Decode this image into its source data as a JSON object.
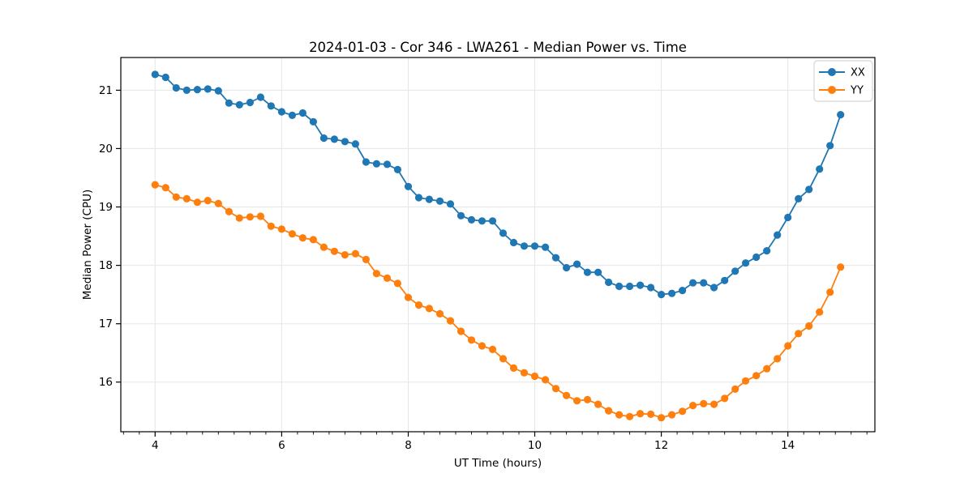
{
  "chart_data": {
    "type": "line",
    "title": "2024-01-03 - Cor 346 - LWA261 - Median Power vs. Time",
    "xlabel": "UT Time (hours)",
    "ylabel": "Median Power (CPU)",
    "xlim": [
      3.458,
      15.375
    ],
    "ylim": [
      15.15,
      21.56
    ],
    "x_major_ticks": [
      4,
      6,
      8,
      10,
      12,
      14
    ],
    "x_minor_tick_step": 0.25,
    "y_major_ticks": [
      16,
      17,
      18,
      19,
      20,
      21
    ],
    "grid": true,
    "grid_color": "#e6e6e6",
    "legend_position": "upper right",
    "marker": "circle",
    "marker_size": 9.2,
    "line_width": 1.8,
    "x": [
      4,
      4.167,
      4.333,
      4.5,
      4.667,
      4.833,
      5,
      5.167,
      5.333,
      5.5,
      5.667,
      5.833,
      6,
      6.167,
      6.333,
      6.5,
      6.667,
      6.833,
      7,
      7.167,
      7.333,
      7.5,
      7.667,
      7.833,
      8,
      8.167,
      8.333,
      8.5,
      8.667,
      8.833,
      9,
      9.167,
      9.333,
      9.5,
      9.667,
      9.833,
      10,
      10.167,
      10.333,
      10.5,
      10.667,
      10.833,
      11,
      11.167,
      11.333,
      11.5,
      11.667,
      11.833,
      12,
      12.167,
      12.333,
      12.5,
      12.667,
      12.833,
      13,
      13.167,
      13.333,
      13.5,
      13.667,
      13.833,
      14,
      14.167,
      14.333,
      14.5,
      14.667,
      14.833
    ],
    "series": [
      {
        "name": "XX",
        "color": "#1f77b4",
        "values": [
          21.27,
          21.22,
          21.04,
          21.0,
          21.01,
          21.02,
          20.99,
          20.78,
          20.75,
          20.79,
          20.88,
          20.73,
          20.63,
          20.57,
          20.61,
          20.46,
          20.18,
          20.16,
          20.12,
          20.08,
          19.77,
          19.74,
          19.73,
          19.64,
          19.35,
          19.16,
          19.13,
          19.1,
          19.05,
          18.85,
          18.78,
          18.76,
          18.76,
          18.55,
          18.39,
          18.33,
          18.33,
          18.31,
          18.13,
          17.96,
          18.02,
          17.88,
          17.88,
          17.71,
          17.64,
          17.64,
          17.66,
          17.62,
          17.5,
          17.52,
          17.57,
          17.7,
          17.7,
          17.62,
          17.74,
          17.9,
          18.04,
          18.14,
          18.25,
          18.52,
          18.82,
          19.14,
          19.3,
          19.65,
          20.05,
          20.58
        ]
      },
      {
        "name": "YY",
        "color": "#ff7f0e",
        "values": [
          19.38,
          19.33,
          19.17,
          19.14,
          19.08,
          19.11,
          19.06,
          18.92,
          18.81,
          18.83,
          18.84,
          18.67,
          18.62,
          18.54,
          18.47,
          18.44,
          18.31,
          18.24,
          18.18,
          18.2,
          18.1,
          17.86,
          17.78,
          17.69,
          17.45,
          17.32,
          17.26,
          17.17,
          17.05,
          16.87,
          16.72,
          16.62,
          16.56,
          16.4,
          16.24,
          16.16,
          16.1,
          16.04,
          15.89,
          15.77,
          15.68,
          15.7,
          15.62,
          15.51,
          15.44,
          15.41,
          15.46,
          15.45,
          15.39,
          15.44,
          15.5,
          15.6,
          15.63,
          15.62,
          15.72,
          15.88,
          16.02,
          16.11,
          16.23,
          16.4,
          16.62,
          16.83,
          16.96,
          17.2,
          17.54,
          17.97
        ]
      }
    ]
  }
}
